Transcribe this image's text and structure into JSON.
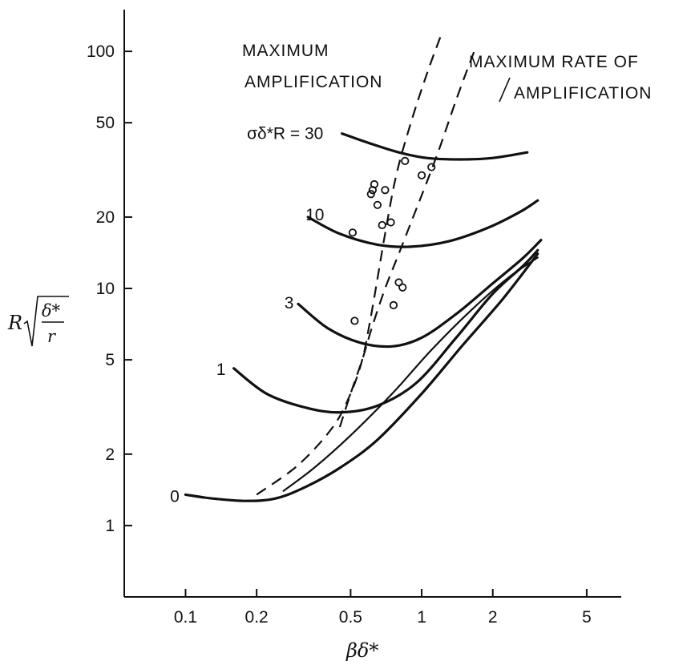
{
  "chart_data": {
    "type": "line",
    "xscale": "log",
    "yscale": "log",
    "xlim": [
      0.055,
      7.0
    ],
    "ylim": [
      0.5,
      150
    ],
    "xlabel": "βδ*",
    "ylabel": {
      "base": "R",
      "numerator": "δ*",
      "denominator": "r"
    },
    "x_ticks": [
      {
        "value": 0.1,
        "label": "0.1"
      },
      {
        "value": 0.2,
        "label": "0.2"
      },
      {
        "value": 0.5,
        "label": "0.5"
      },
      {
        "value": 1,
        "label": "1"
      },
      {
        "value": 2,
        "label": "2"
      },
      {
        "value": 5,
        "label": "5"
      }
    ],
    "y_ticks": [
      {
        "value": 1,
        "label": "1"
      },
      {
        "value": 2,
        "label": "2"
      },
      {
        "value": 5,
        "label": "5"
      },
      {
        "value": 10,
        "label": "10"
      },
      {
        "value": 20,
        "label": "20"
      },
      {
        "value": 50,
        "label": "50"
      },
      {
        "value": 100,
        "label": "100"
      }
    ],
    "series": [
      {
        "name": "0",
        "label_pos": [
          0.086,
          1.33
        ],
        "style": "solid",
        "weight": "thick",
        "x": [
          0.1,
          0.13,
          0.18,
          0.24,
          0.32,
          0.45,
          0.65,
          1.0,
          1.5,
          2.2,
          3.1
        ],
        "y": [
          1.35,
          1.3,
          1.27,
          1.3,
          1.45,
          1.75,
          2.3,
          3.6,
          5.8,
          9.0,
          14.0
        ]
      },
      {
        "name": "",
        "style": "solid",
        "weight": "thin",
        "x": [
          0.26,
          0.35,
          0.5,
          0.75,
          1.1,
          1.6,
          2.3,
          3.1
        ],
        "y": [
          1.4,
          1.75,
          2.4,
          3.6,
          5.5,
          8.0,
          11.0,
          13.5
        ]
      },
      {
        "name": "1",
        "label_pos": [
          0.135,
          4.55
        ],
        "style": "solid",
        "weight": "thick",
        "x": [
          0.16,
          0.22,
          0.32,
          0.45,
          0.65,
          0.95,
          1.4,
          2.0,
          2.7,
          3.1
        ],
        "y": [
          4.6,
          3.6,
          3.15,
          3.0,
          3.2,
          4.0,
          6.2,
          9.5,
          12.5,
          14.5
        ]
      },
      {
        "name": "3",
        "label_pos": [
          0.262,
          8.7
        ],
        "style": "solid",
        "weight": "thick",
        "x": [
          0.3,
          0.4,
          0.55,
          0.75,
          1.0,
          1.4,
          2.0,
          2.7,
          3.2
        ],
        "y": [
          8.6,
          6.8,
          5.9,
          5.7,
          6.2,
          7.8,
          10.5,
          13.5,
          16.0
        ]
      },
      {
        "name": "10",
        "label_pos": [
          0.322,
          20.5
        ],
        "style": "solid",
        "weight": "thick",
        "x": [
          0.33,
          0.45,
          0.65,
          0.9,
          1.3,
          1.9,
          2.6,
          3.1
        ],
        "y": [
          20.0,
          17.0,
          15.3,
          15.0,
          15.8,
          18.0,
          21.0,
          23.5
        ]
      },
      {
        "name": "30",
        "label_text": "σδ*R = 30",
        "label_pos": [
          0.182,
          45.0
        ],
        "style": "solid",
        "weight": "thick",
        "x": [
          0.46,
          0.6,
          0.8,
          1.05,
          1.45,
          2.0,
          2.8
        ],
        "y": [
          45.0,
          41.0,
          37.5,
          35.5,
          35.0,
          35.5,
          37.5
        ]
      },
      {
        "name": "MAXIMUM AMPLIFICATION",
        "style": "dashed",
        "x": [
          0.2,
          0.3,
          0.42,
          0.5,
          0.56,
          0.6,
          0.65,
          0.7,
          0.78,
          0.9,
          1.05,
          1.2
        ],
        "y": [
          1.35,
          1.8,
          2.6,
          3.6,
          5.0,
          7.0,
          11.0,
          17.0,
          30.0,
          50.0,
          80.0,
          115.0
        ]
      },
      {
        "name": "MAXIMUM RATE OF AMPLIFICATION",
        "style": "dashed",
        "x": [
          0.45,
          0.5,
          0.56,
          0.62,
          0.7,
          0.8,
          0.92,
          1.05,
          1.2,
          1.42,
          1.7
        ],
        "y": [
          2.6,
          3.6,
          5.0,
          7.0,
          10.0,
          14.0,
          20.0,
          28.0,
          40.0,
          65.0,
          105.0
        ]
      }
    ],
    "points": {
      "x": [
        0.51,
        0.62,
        0.63,
        0.61,
        0.65,
        0.7,
        0.68,
        0.74,
        0.52,
        0.8,
        0.83,
        0.76,
        0.85,
        1.0,
        1.1
      ],
      "y": [
        17.2,
        26.0,
        27.5,
        25.0,
        22.5,
        26.0,
        18.5,
        19.0,
        7.3,
        10.6,
        10.1,
        8.5,
        34.5,
        30.0,
        32.5
      ]
    },
    "annotations": [
      {
        "lines": [
          "MAXIMUM",
          "AMPLIFICATION"
        ]
      },
      {
        "lines": [
          "MAXIMUM RATE OF",
          "AMPLIFICATION"
        ]
      }
    ]
  }
}
